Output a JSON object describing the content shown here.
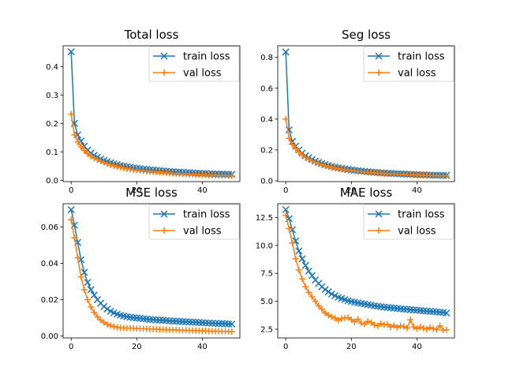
{
  "colors": {
    "train": "#1f77b4",
    "val": "#ff7f0e",
    "axis": "#000000",
    "legend_edge": "#cccccc"
  },
  "chart_data": [
    {
      "type": "line",
      "title": "Total loss",
      "xlabel": "",
      "ylabel": "",
      "xlim": [
        -2.45,
        51.45
      ],
      "ylim": [
        -0.0045,
        0.473
      ],
      "xticks": [
        0,
        20,
        40
      ],
      "xtick_labels": [
        "0",
        "20",
        "40"
      ],
      "yticks": [
        0.0,
        0.1,
        0.2,
        0.3,
        0.4
      ],
      "ytick_labels": [
        "0.0",
        "0.1",
        "0.2",
        "0.3",
        "0.4"
      ],
      "grid": false,
      "legend": "top-right",
      "x": [
        0,
        1,
        2,
        3,
        4,
        5,
        6,
        7,
        8,
        9,
        10,
        11,
        12,
        13,
        14,
        15,
        16,
        17,
        18,
        19,
        20,
        21,
        22,
        23,
        24,
        25,
        26,
        27,
        28,
        29,
        30,
        31,
        32,
        33,
        34,
        35,
        36,
        37,
        38,
        39,
        40,
        41,
        42,
        43,
        44,
        45,
        46,
        47,
        48,
        49
      ],
      "series": [
        {
          "name": "train loss",
          "marker": "x",
          "color_key": "train",
          "values": [
            0.452,
            0.2,
            0.16,
            0.138,
            0.12,
            0.106,
            0.096,
            0.088,
            0.081,
            0.075,
            0.07,
            0.066,
            0.062,
            0.058,
            0.055,
            0.052,
            0.05,
            0.048,
            0.046,
            0.044,
            0.042,
            0.041,
            0.039,
            0.038,
            0.037,
            0.036,
            0.035,
            0.034,
            0.033,
            0.032,
            0.031,
            0.03,
            0.029,
            0.029,
            0.028,
            0.027,
            0.027,
            0.026,
            0.025,
            0.025,
            0.024,
            0.024,
            0.023,
            0.023,
            0.022,
            0.022,
            0.022,
            0.021,
            0.021,
            0.021
          ]
        },
        {
          "name": "val loss",
          "marker": "+",
          "color_key": "val",
          "values": [
            0.233,
            0.16,
            0.135,
            0.118,
            0.105,
            0.094,
            0.085,
            0.078,
            0.072,
            0.067,
            0.062,
            0.058,
            0.054,
            0.051,
            0.048,
            0.046,
            0.043,
            0.041,
            0.039,
            0.037,
            0.036,
            0.034,
            0.033,
            0.032,
            0.031,
            0.03,
            0.029,
            0.028,
            0.027,
            0.026,
            0.025,
            0.024,
            0.024,
            0.023,
            0.022,
            0.022,
            0.021,
            0.021,
            0.02,
            0.02,
            0.019,
            0.019,
            0.018,
            0.018,
            0.018,
            0.017,
            0.017,
            0.017,
            0.016,
            0.016
          ]
        }
      ]
    },
    {
      "type": "line",
      "title": "Seg loss",
      "xlabel": "",
      "ylabel": "",
      "xlim": [
        -2.45,
        51.45
      ],
      "ylim": [
        -0.005,
        0.875
      ],
      "xticks": [
        0,
        20,
        40
      ],
      "xtick_labels": [
        "0",
        "20",
        "40"
      ],
      "yticks": [
        0.0,
        0.2,
        0.4,
        0.6,
        0.8
      ],
      "ytick_labels": [
        "0.0",
        "0.2",
        "0.4",
        "0.6",
        "0.8"
      ],
      "grid": false,
      "legend": "top-right",
      "x": [
        0,
        1,
        2,
        3,
        4,
        5,
        6,
        7,
        8,
        9,
        10,
        11,
        12,
        13,
        14,
        15,
        16,
        17,
        18,
        19,
        20,
        21,
        22,
        23,
        24,
        25,
        26,
        27,
        28,
        29,
        30,
        31,
        32,
        33,
        34,
        35,
        36,
        37,
        38,
        39,
        40,
        41,
        42,
        43,
        44,
        45,
        46,
        47,
        48,
        49
      ],
      "series": [
        {
          "name": "train loss",
          "marker": "x",
          "color_key": "train",
          "values": [
            0.835,
            0.33,
            0.255,
            0.225,
            0.2,
            0.18,
            0.163,
            0.15,
            0.138,
            0.128,
            0.119,
            0.112,
            0.105,
            0.099,
            0.094,
            0.089,
            0.085,
            0.081,
            0.077,
            0.074,
            0.071,
            0.068,
            0.066,
            0.063,
            0.061,
            0.059,
            0.057,
            0.055,
            0.054,
            0.052,
            0.051,
            0.049,
            0.048,
            0.047,
            0.046,
            0.045,
            0.044,
            0.043,
            0.042,
            0.041,
            0.04,
            0.039,
            0.039,
            0.038,
            0.037,
            0.037,
            0.036,
            0.036,
            0.035,
            0.035
          ]
        },
        {
          "name": "val loss",
          "marker": "+",
          "color_key": "val",
          "values": [
            0.4,
            0.275,
            0.235,
            0.208,
            0.185,
            0.167,
            0.152,
            0.139,
            0.128,
            0.119,
            0.111,
            0.104,
            0.098,
            0.092,
            0.087,
            0.083,
            0.079,
            0.075,
            0.072,
            0.069,
            0.066,
            0.064,
            0.061,
            0.059,
            0.057,
            0.055,
            0.053,
            0.052,
            0.05,
            0.049,
            0.047,
            0.046,
            0.045,
            0.044,
            0.043,
            0.042,
            0.041,
            0.04,
            0.039,
            0.038,
            0.038,
            0.037,
            0.036,
            0.036,
            0.035,
            0.034,
            0.034,
            0.033,
            0.033,
            0.032
          ]
        }
      ]
    },
    {
      "type": "line",
      "title": "MSE loss",
      "xlabel": "",
      "ylabel": "",
      "xlim": [
        -2.45,
        51.45
      ],
      "ylim": [
        -0.0011,
        0.0728
      ],
      "xticks": [
        0,
        20,
        40
      ],
      "xtick_labels": [
        "0",
        "20",
        "40"
      ],
      "yticks": [
        0.0,
        0.02,
        0.04,
        0.06
      ],
      "ytick_labels": [
        "0.00",
        "0.02",
        "0.04",
        "0.06"
      ],
      "grid": false,
      "legend": "top-right",
      "x": [
        0,
        1,
        2,
        3,
        4,
        5,
        6,
        7,
        8,
        9,
        10,
        11,
        12,
        13,
        14,
        15,
        16,
        17,
        18,
        19,
        20,
        21,
        22,
        23,
        24,
        25,
        26,
        27,
        28,
        29,
        30,
        31,
        32,
        33,
        34,
        35,
        36,
        37,
        38,
        39,
        40,
        41,
        42,
        43,
        44,
        45,
        46,
        47,
        48,
        49
      ],
      "series": [
        {
          "name": "train loss",
          "marker": "x",
          "color_key": "train",
          "values": [
            0.0695,
            0.061,
            0.0515,
            0.042,
            0.035,
            0.0295,
            0.0255,
            0.0225,
            0.02,
            0.018,
            0.0162,
            0.0148,
            0.0136,
            0.0127,
            0.012,
            0.0114,
            0.011,
            0.0106,
            0.0103,
            0.0101,
            0.0099,
            0.0097,
            0.0095,
            0.0093,
            0.0091,
            0.009,
            0.0088,
            0.0087,
            0.0086,
            0.0085,
            0.0083,
            0.0082,
            0.0081,
            0.008,
            0.0079,
            0.0078,
            0.0077,
            0.0076,
            0.0075,
            0.0074,
            0.0073,
            0.0072,
            0.0071,
            0.007,
            0.0069,
            0.0068,
            0.0068,
            0.0067,
            0.0066,
            0.0065
          ]
        },
        {
          "name": "val loss",
          "marker": "+",
          "color_key": "val",
          "values": [
            0.064,
            0.054,
            0.043,
            0.0325,
            0.0255,
            0.02,
            0.016,
            0.013,
            0.0105,
            0.0088,
            0.0074,
            0.0064,
            0.0057,
            0.0051,
            0.0047,
            0.0045,
            0.0044,
            0.0043,
            0.0043,
            0.0042,
            0.0041,
            0.004,
            0.004,
            0.0039,
            0.0038,
            0.0038,
            0.0037,
            0.0036,
            0.0035,
            0.0034,
            0.0034,
            0.0033,
            0.0033,
            0.0032,
            0.0031,
            0.0031,
            0.003,
            0.003,
            0.0029,
            0.0029,
            0.0028,
            0.0028,
            0.0027,
            0.0027,
            0.0026,
            0.0026,
            0.0025,
            0.0025,
            0.0024,
            0.0024
          ]
        }
      ]
    },
    {
      "type": "line",
      "title": "MAE loss",
      "xlabel": "",
      "ylabel": "",
      "xlim": [
        -2.45,
        51.45
      ],
      "ylim": [
        1.72,
        13.73
      ],
      "xticks": [
        0,
        20,
        40
      ],
      "xtick_labels": [
        "0",
        "20",
        "40"
      ],
      "yticks": [
        2.5,
        5.0,
        7.5,
        10.0,
        12.5
      ],
      "ytick_labels": [
        "2.5",
        "5.0",
        "7.5",
        "10.0",
        "12.5"
      ],
      "grid": false,
      "legend": "top-right",
      "x": [
        0,
        1,
        2,
        3,
        4,
        5,
        6,
        7,
        8,
        9,
        10,
        11,
        12,
        13,
        14,
        15,
        16,
        17,
        18,
        19,
        20,
        21,
        22,
        23,
        24,
        25,
        26,
        27,
        28,
        29,
        30,
        31,
        32,
        33,
        34,
        35,
        36,
        37,
        38,
        39,
        40,
        41,
        42,
        43,
        44,
        45,
        46,
        47,
        48,
        49
      ],
      "series": [
        {
          "name": "train loss",
          "marker": "x",
          "color_key": "train",
          "values": [
            13.2,
            12.4,
            11.4,
            10.4,
            9.5,
            8.8,
            8.2,
            7.7,
            7.3,
            6.9,
            6.6,
            6.3,
            6.05,
            5.85,
            5.65,
            5.5,
            5.35,
            5.25,
            5.15,
            5.05,
            4.98,
            4.92,
            4.86,
            4.8,
            4.75,
            4.7,
            4.65,
            4.6,
            4.56,
            4.52,
            4.48,
            4.45,
            4.42,
            4.39,
            4.36,
            4.33,
            4.3,
            4.28,
            4.25,
            4.22,
            4.2,
            4.18,
            4.15,
            4.12,
            4.1,
            4.08,
            4.05,
            4.02,
            4.0,
            3.95
          ]
        },
        {
          "name": "val loss",
          "marker": "+",
          "color_key": "val",
          "values": [
            12.7,
            11.5,
            10.2,
            8.8,
            7.8,
            7.0,
            6.3,
            5.8,
            5.4,
            5.0,
            4.6,
            4.3,
            3.95,
            3.75,
            3.6,
            3.5,
            3.3,
            3.45,
            3.5,
            3.55,
            3.35,
            3.15,
            3.4,
            3.05,
            2.95,
            3.2,
            3.1,
            2.9,
            2.8,
            3.0,
            2.9,
            2.95,
            2.7,
            2.85,
            2.65,
            2.8,
            2.75,
            2.6,
            3.35,
            2.7,
            2.55,
            2.7,
            2.6,
            2.5,
            2.65,
            2.55,
            2.45,
            2.8,
            2.4,
            2.45
          ]
        }
      ]
    }
  ]
}
